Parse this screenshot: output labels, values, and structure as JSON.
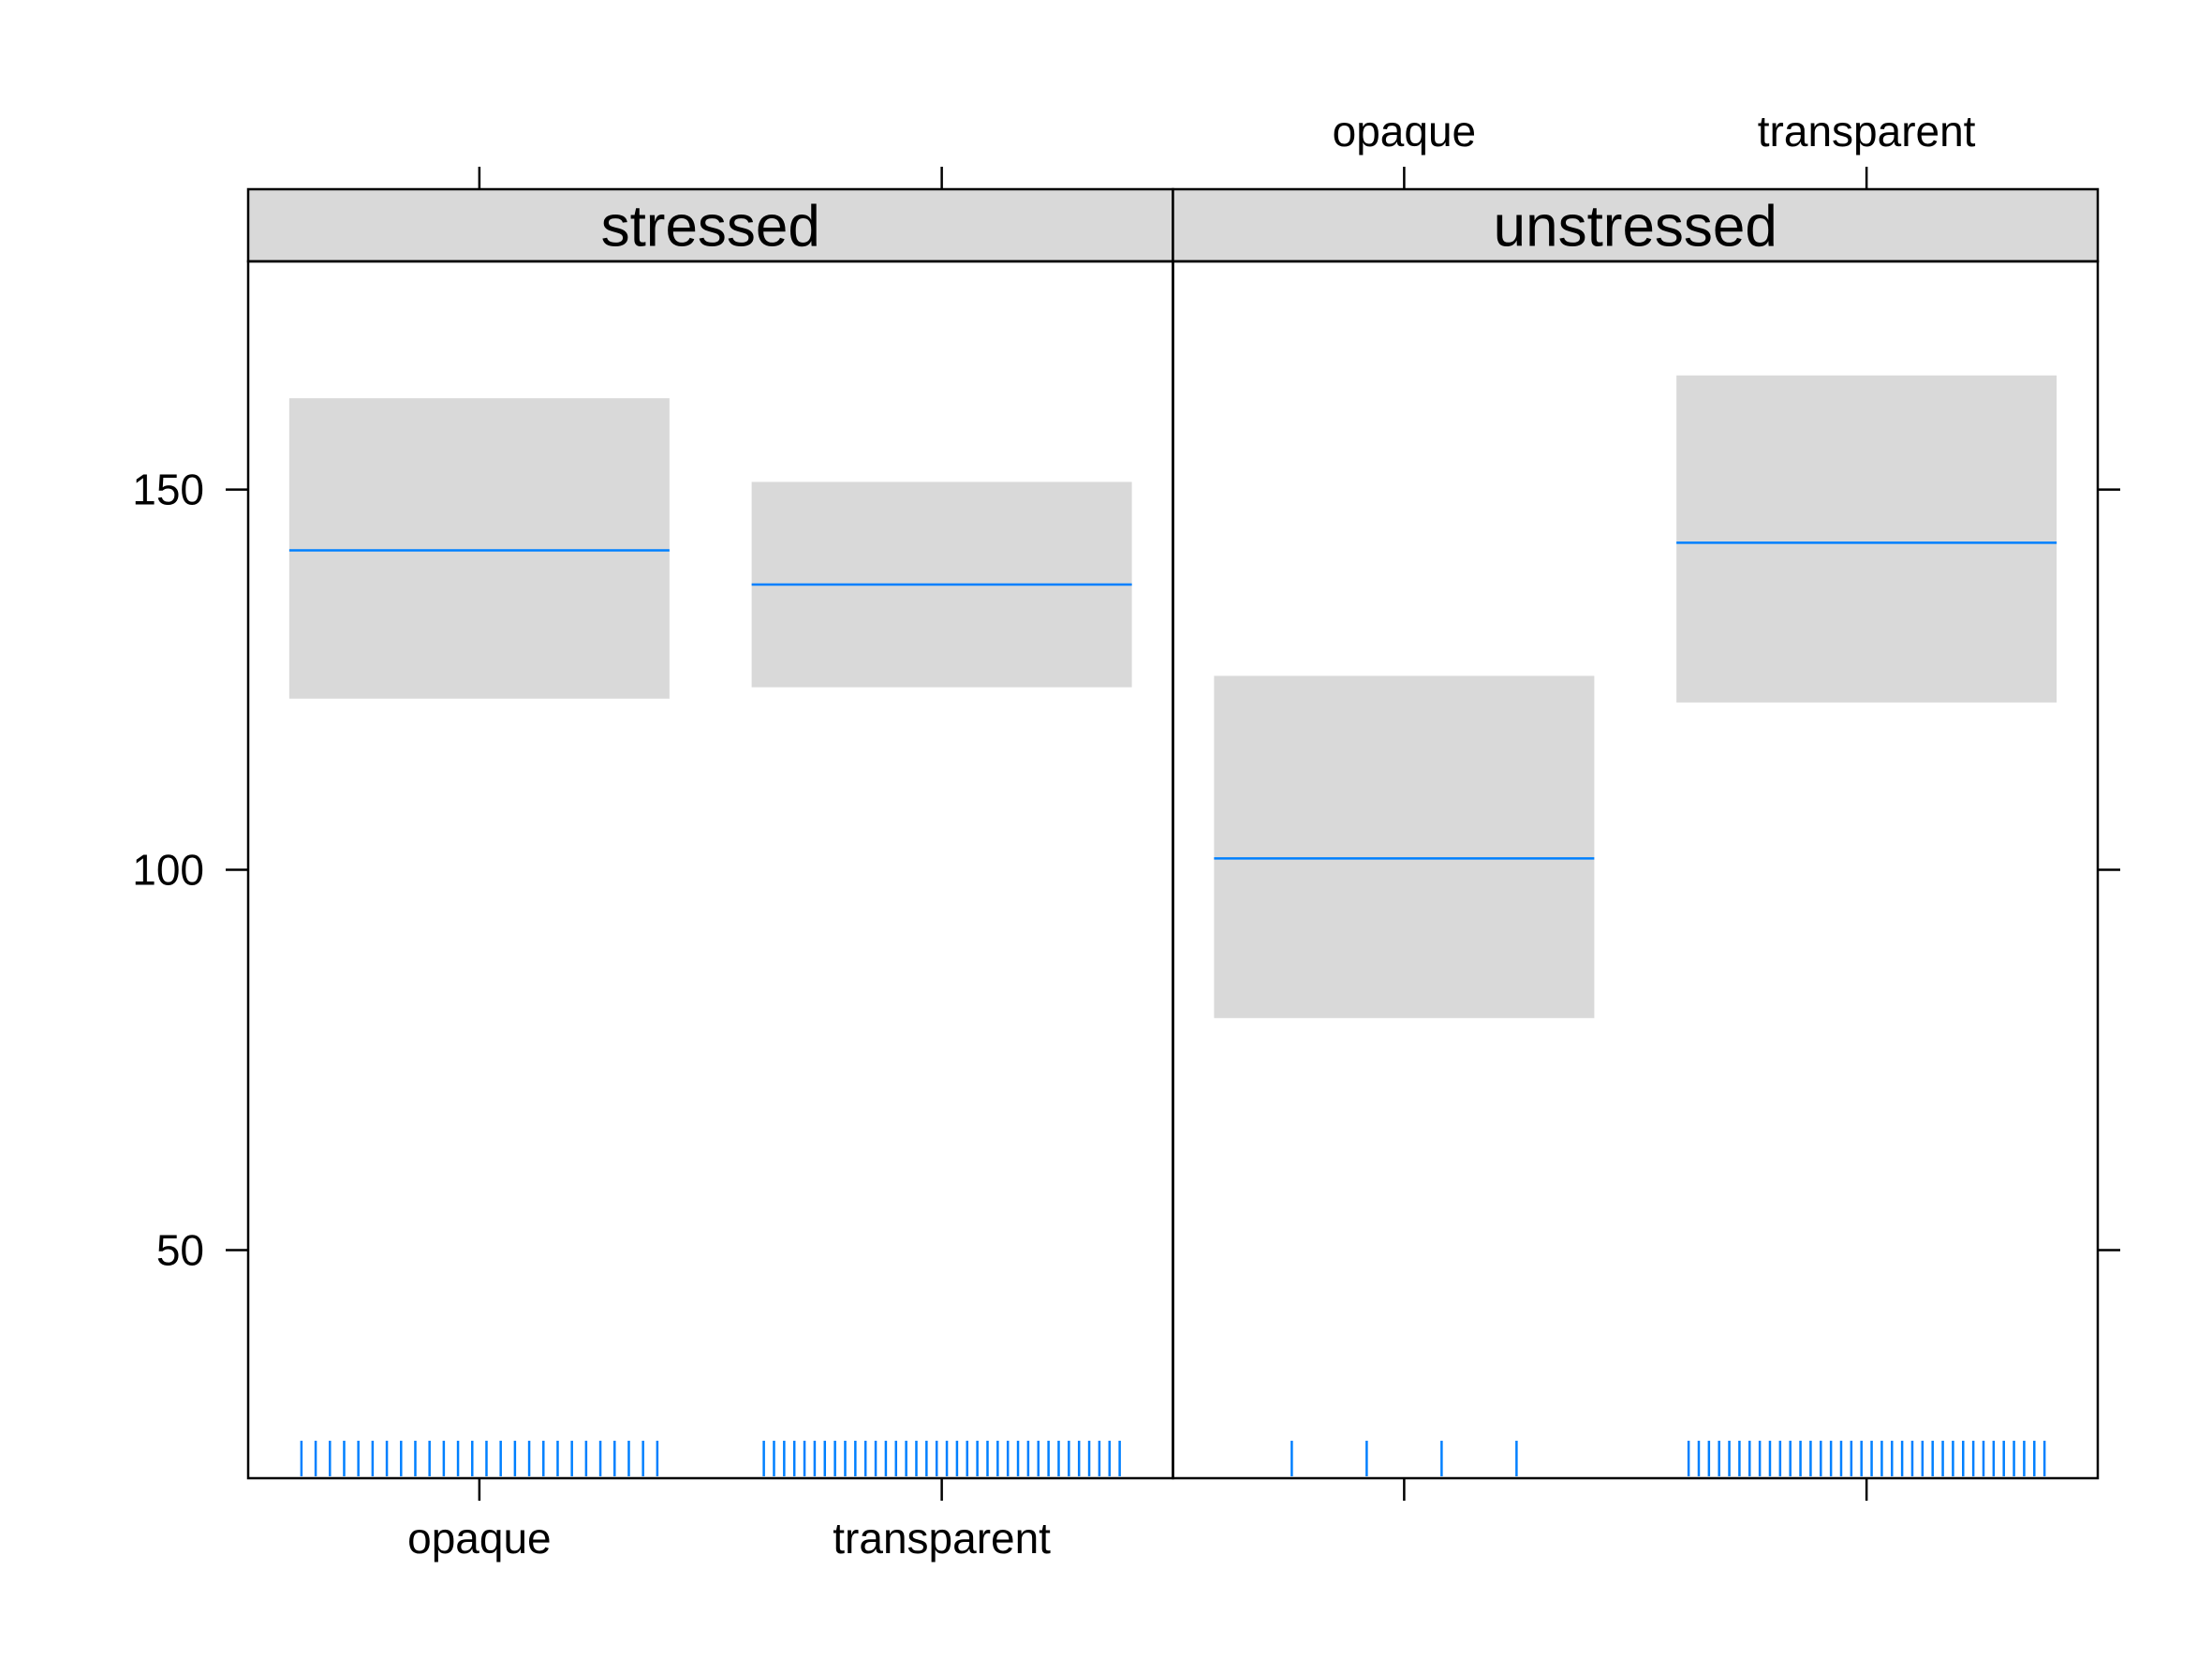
{
  "chart_data": {
    "type": "bar",
    "panels": [
      {
        "name": "stressed",
        "groups": [
          {
            "category": "opaque",
            "fit": 142,
            "lower": 122.5,
            "upper": 162,
            "rug_count": 26
          },
          {
            "category": "transparent",
            "fit": 137.5,
            "lower": 124,
            "upper": 151,
            "rug_count": 36
          }
        ]
      },
      {
        "name": "unstressed",
        "groups": [
          {
            "category": "opaque",
            "fit": 101.5,
            "lower": 80.5,
            "upper": 125.5,
            "rug_count": 4
          },
          {
            "category": "transparent",
            "fit": 143,
            "lower": 122,
            "upper": 165,
            "rug_count": 36
          }
        ]
      }
    ],
    "categories": [
      "opaque",
      "transparent"
    ],
    "y_ticks": [
      50,
      100,
      150
    ],
    "y_tick_labels": [
      "50",
      "100",
      "150"
    ],
    "ylim": [
      20,
      180
    ],
    "colors": {
      "line": "#0080ff",
      "band": "#d9d9d9",
      "strip": "#d9d9d9",
      "rug": "#0080ff"
    },
    "grid": false,
    "legend": "none"
  }
}
